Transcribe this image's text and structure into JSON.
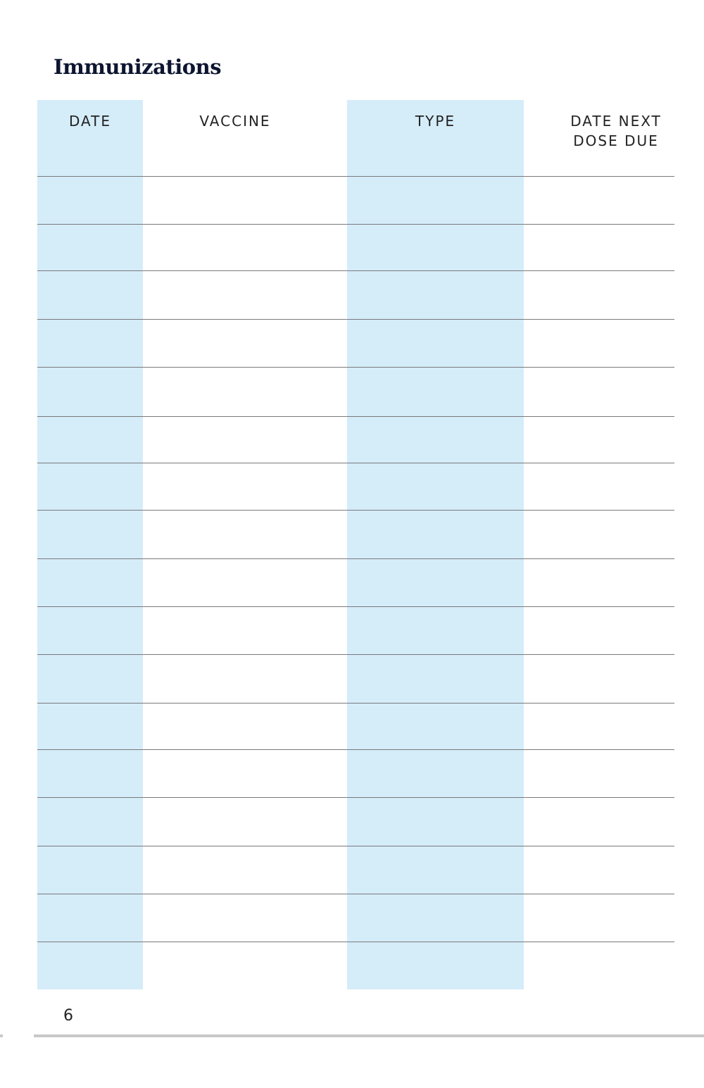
{
  "title": "Immunizations",
  "columns": [
    {
      "label": "DATE",
      "shaded": true
    },
    {
      "label": "VACCINE",
      "shaded": false
    },
    {
      "label": "TYPE",
      "shaded": true
    },
    {
      "label": "DATE NEXT DOSE DUE",
      "line1": "DATE NEXT",
      "line2": "DOSE DUE",
      "shaded": false
    }
  ],
  "row_count": 17,
  "shade_color": "#d5ecf9",
  "page_number": "6"
}
